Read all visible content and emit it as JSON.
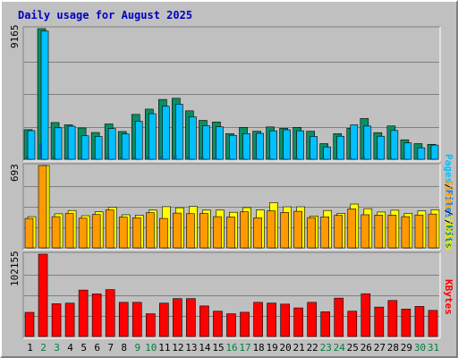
{
  "title": "Daily usage for August 2025",
  "colors": {
    "hits": "#0a8e64",
    "files": "#00c0ff",
    "sites": "#ff9a00",
    "visits": "#ffff00",
    "kbytes": "#ff0000",
    "weekday_label": "#000000",
    "weekend_label": "#008040",
    "separator": "#808080"
  },
  "chart_data": [
    {
      "type": "bar",
      "panel": "hits-files-pages",
      "ymax_label": "9165",
      "ylim": [
        0,
        9165
      ],
      "categories": [
        "1",
        "2",
        "3",
        "4",
        "5",
        "6",
        "7",
        "8",
        "9",
        "10",
        "11",
        "12",
        "13",
        "14",
        "15",
        "16",
        "17",
        "18",
        "19",
        "20",
        "21",
        "22",
        "23",
        "24",
        "25",
        "26",
        "27",
        "28",
        "29",
        "30",
        "31"
      ],
      "weekend": [
        false,
        true,
        true,
        false,
        false,
        false,
        false,
        false,
        true,
        true,
        false,
        false,
        false,
        false,
        false,
        true,
        true,
        false,
        false,
        false,
        false,
        false,
        true,
        true,
        false,
        false,
        false,
        false,
        false,
        true,
        true
      ],
      "legend": [
        {
          "label": "Hits",
          "color": "#0a8e64"
        },
        {
          "label": "Files",
          "color": "#00c0ff"
        },
        {
          "label": "Pages",
          "color": "#00c0ff"
        }
      ],
      "series": [
        {
          "name": "Hits",
          "values": [
            2080,
            9165,
            2580,
            2420,
            2200,
            1880,
            2480,
            1950,
            3150,
            3520,
            4200,
            4280,
            3400,
            2730,
            2620,
            1800,
            2240,
            1970,
            2270,
            2170,
            2240,
            1970,
            1100,
            1800,
            2170,
            2860,
            1870,
            2340,
            1370,
            1100,
            1050
          ]
        },
        {
          "name": "Files",
          "values": [
            2010,
            9000,
            2210,
            2320,
            1650,
            1600,
            2160,
            1780,
            2670,
            3200,
            3720,
            3870,
            2980,
            2350,
            2280,
            1680,
            1800,
            1820,
            2000,
            2070,
            2000,
            1600,
            870,
            1620,
            2420,
            2330,
            1620,
            2020,
            1150,
            810,
            1000
          ]
        },
        {
          "name": "Pages",
          "values": [
            180,
            1150,
            180,
            150,
            130,
            140,
            200,
            160,
            170,
            240,
            230,
            270,
            200,
            210,
            160,
            110,
            160,
            140,
            150,
            150,
            140,
            120,
            90,
            120,
            150,
            180,
            130,
            150,
            100,
            80,
            90
          ]
        }
      ]
    },
    {
      "type": "bar",
      "panel": "visits-sites",
      "ymax_label": "693",
      "ylim": [
        0,
        693
      ],
      "legend": [
        {
          "label": "Visits",
          "color": "#ffff00"
        },
        {
          "label": "Sites",
          "color": "#ff9a00"
        }
      ],
      "series": [
        {
          "name": "Visits",
          "values": [
            263,
            693,
            287,
            315,
            271,
            304,
            343,
            279,
            276,
            318,
            347,
            338,
            349,
            318,
            318,
            300,
            339,
            320,
            381,
            346,
            346,
            268,
            315,
            290,
            369,
            330,
            302,
            317,
            291,
            312,
            322
          ]
        },
        {
          "name": "Sites",
          "values": [
            248,
            693,
            263,
            290,
            250,
            281,
            319,
            259,
            253,
            296,
            248,
            293,
            288,
            290,
            263,
            260,
            304,
            253,
            312,
            298,
            308,
            255,
            261,
            274,
            328,
            279,
            276,
            276,
            263,
            277,
            285
          ]
        }
      ]
    },
    {
      "type": "bar",
      "panel": "kbytes",
      "ymax_label": "102155",
      "ylim": [
        0,
        102155
      ],
      "legend": [
        {
          "label": "KBytes",
          "color": "#ff0000"
        }
      ],
      "series": [
        {
          "name": "KBytes",
          "values": [
            30000,
            102155,
            40700,
            41400,
            57600,
            52800,
            58200,
            42400,
            42400,
            28200,
            41400,
            47000,
            47000,
            37900,
            31400,
            28200,
            30100,
            42400,
            41500,
            40200,
            35500,
            42400,
            30700,
            47600,
            31400,
            53100,
            36500,
            44700,
            34100,
            37300,
            32400
          ]
        }
      ]
    }
  ]
}
